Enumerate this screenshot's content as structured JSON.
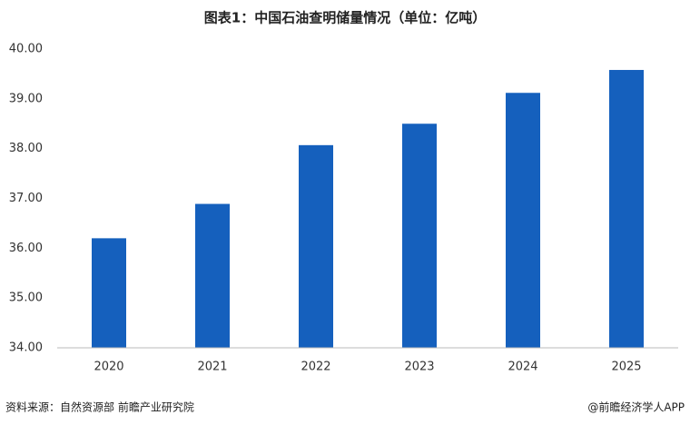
{
  "chart_data": {
    "type": "bar",
    "title": "图表1：中国石油查明储量情况（单位：亿吨）",
    "categories": [
      "2020",
      "2021",
      "2022",
      "2023",
      "2024",
      "2025"
    ],
    "values": [
      36.2,
      36.89,
      38.07,
      38.5,
      39.12,
      39.58
    ],
    "color": "#1560bd",
    "ylim": [
      34,
      40
    ],
    "yticks": [
      {
        "value": 34,
        "label": "34.00"
      },
      {
        "value": 35,
        "label": "35.00"
      },
      {
        "value": 36,
        "label": "36.00"
      },
      {
        "value": 37,
        "label": "37.00"
      },
      {
        "value": 38,
        "label": "38.00"
      },
      {
        "value": 39,
        "label": "39.00"
      },
      {
        "value": 40,
        "label": "40.00"
      }
    ],
    "grid": false,
    "source": "资料来源：自然资源部 前瞻产业研究院",
    "credit": "@前瞻经济学人APP"
  }
}
